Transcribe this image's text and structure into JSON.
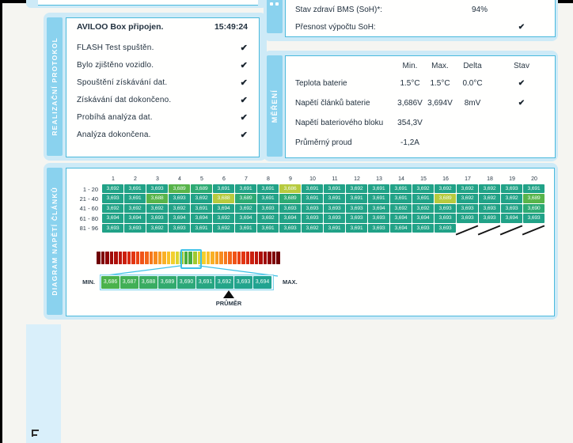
{
  "realizacni": {
    "label": "REALIZAČNÍ PROTOKOL",
    "title": "AVILOO Box připojen.",
    "time": "15:49:24",
    "items": [
      {
        "label": "FLASH Test spuštěn.",
        "check": "✔"
      },
      {
        "label": "Bylo zjištěno vozidlo.",
        "check": "✔"
      },
      {
        "label": "Spouštění získávání dat.",
        "check": "✔"
      },
      {
        "label": "Získávání dat dokončeno.",
        "check": "✔"
      },
      {
        "label": "Probíhá analýza dat.",
        "check": "✔"
      },
      {
        "label": "Analýza dokončena.",
        "check": "✔"
      }
    ]
  },
  "bms": {
    "rows": [
      {
        "label": "Stav zdraví BMS (SoH)*:",
        "value": "94%",
        "check": ""
      },
      {
        "label": "Přesnost výpočtu SoH:",
        "value": "",
        "check": "✔"
      }
    ]
  },
  "mereni": {
    "label": "MĚŘENÍ",
    "columns": {
      "min": "Min.",
      "max": "Max.",
      "delta": "Delta",
      "stav": "Stav"
    },
    "rows": [
      {
        "label": "Teplota baterie",
        "min": "1.5°C",
        "max": "1.5°C",
        "delta": "0.0°C",
        "stav": "✔"
      },
      {
        "label": "Napětí článků baterie",
        "min": "3,686V",
        "max": "3,694V",
        "delta": "8mV",
        "stav": "✔"
      },
      {
        "label": "Napětí bateriového bloku",
        "min": "354,3V",
        "max": "",
        "delta": "",
        "stav": ""
      },
      {
        "label": "Průměrný proud",
        "min": "-1,2A",
        "max": "",
        "delta": "",
        "stav": ""
      }
    ]
  },
  "diagram": {
    "label": "DIAGRAM NAPĚTÍ ČLÁNKŮ",
    "col_headers": [
      "1",
      "2",
      "3",
      "4",
      "5",
      "6",
      "7",
      "8",
      "9",
      "10",
      "11",
      "12",
      "13",
      "14",
      "15",
      "16",
      "17",
      "18",
      "19",
      "20"
    ],
    "color_map": {
      "t": "#21a287",
      "c": "#2daa74",
      "g": "#58b44a",
      "y": "#b7ca3e"
    },
    "rows": [
      {
        "label": "1 - 20",
        "values": [
          "3,692",
          "3,691",
          "3,693",
          "3,689",
          "3,689",
          "3,691",
          "3,691",
          "3,691",
          "3,686",
          "3,691",
          "3,691",
          "3,692",
          "3,691",
          "3,691",
          "3,692",
          "3,692",
          "3,692",
          "3,692",
          "3,693",
          "3,691"
        ],
        "colors": [
          "t",
          "t",
          "t",
          "g",
          "c",
          "t",
          "t",
          "t",
          "y",
          "t",
          "t",
          "t",
          "t",
          "t",
          "t",
          "t",
          "t",
          "t",
          "t",
          "t"
        ]
      },
      {
        "label": "21 - 40",
        "values": [
          "3,693",
          "3,691",
          "3,688",
          "3,693",
          "3,692",
          "3,688",
          "3,689",
          "3,691",
          "3,689",
          "3,691",
          "3,691",
          "3,691",
          "3,691",
          "3,691",
          "3,691",
          "3,689",
          "3,692",
          "3,692",
          "3,692",
          "3,689"
        ],
        "colors": [
          "t",
          "t",
          "g",
          "t",
          "t",
          "y",
          "c",
          "t",
          "c",
          "t",
          "t",
          "t",
          "t",
          "t",
          "t",
          "y",
          "t",
          "t",
          "t",
          "g"
        ]
      },
      {
        "label": "41 - 60",
        "values": [
          "3,692",
          "3,692",
          "3,692",
          "3,692",
          "3,691",
          "3,694",
          "3,692",
          "3,693",
          "3,693",
          "3,693",
          "3,693",
          "3,693",
          "3,694",
          "3,692",
          "3,692",
          "3,693",
          "3,693",
          "3,693",
          "3,693",
          "3,690"
        ],
        "colors": [
          "t",
          "t",
          "t",
          "t",
          "t",
          "t",
          "t",
          "t",
          "t",
          "t",
          "t",
          "t",
          "t",
          "t",
          "t",
          "t",
          "t",
          "t",
          "t",
          "c"
        ]
      },
      {
        "label": "61 - 80",
        "values": [
          "3,694",
          "3,694",
          "3,693",
          "3,694",
          "3,694",
          "3,692",
          "3,694",
          "3,692",
          "3,694",
          "3,693",
          "3,693",
          "3,693",
          "3,693",
          "3,694",
          "3,694",
          "3,693",
          "3,693",
          "3,693",
          "3,694",
          "3,693"
        ],
        "colors": [
          "t",
          "t",
          "t",
          "t",
          "t",
          "t",
          "t",
          "t",
          "t",
          "t",
          "t",
          "t",
          "t",
          "t",
          "t",
          "t",
          "t",
          "t",
          "t",
          "t"
        ]
      },
      {
        "label": "81 - 96",
        "values": [
          "3,693",
          "3,693",
          "3,692",
          "3,693",
          "3,691",
          "3,692",
          "3,691",
          "3,691",
          "3,693",
          "3,692",
          "3,691",
          "3,691",
          "3,693",
          "3,694",
          "3,693",
          "3,693",
          "",
          "",
          "",
          ""
        ],
        "colors": [
          "t",
          "t",
          "t",
          "t",
          "t",
          "t",
          "t",
          "t",
          "t",
          "t",
          "t",
          "t",
          "t",
          "t",
          "t",
          "t",
          "x",
          "x",
          "x",
          "x"
        ]
      }
    ],
    "legend": {
      "min_label": "MIN.",
      "max_label": "MAX.",
      "avg_label": "PRŮMĚR",
      "avg_index": 6,
      "zoom_cells": [
        {
          "v": "3,686",
          "color": "#4ab24b"
        },
        {
          "v": "3,687",
          "color": "#41af56"
        },
        {
          "v": "3,688",
          "color": "#39ac62"
        },
        {
          "v": "3,689",
          "color": "#32aa6e"
        },
        {
          "v": "3,690",
          "color": "#2ca879"
        },
        {
          "v": "3,691",
          "color": "#27a682"
        },
        {
          "v": "3,692",
          "color": "#24a589"
        },
        {
          "v": "3,693",
          "color": "#22a48d"
        },
        {
          "v": "3,694",
          "color": "#20a391"
        }
      ],
      "gradient_half": [
        "#6f0004",
        "#7f0105",
        "#8f0406",
        "#9f0908",
        "#ae0f0a",
        "#bd160c",
        "#cb1f0e",
        "#d82910",
        "#e23512",
        "#ea4314",
        "#f05317",
        "#f3651a",
        "#f5781d",
        "#f78b20",
        "#f89e23",
        "#f9b026",
        "#f9c129",
        "#f3cf2d",
        "#ddd42f",
        "#9fc930",
        "#4bae3c"
      ]
    }
  }
}
